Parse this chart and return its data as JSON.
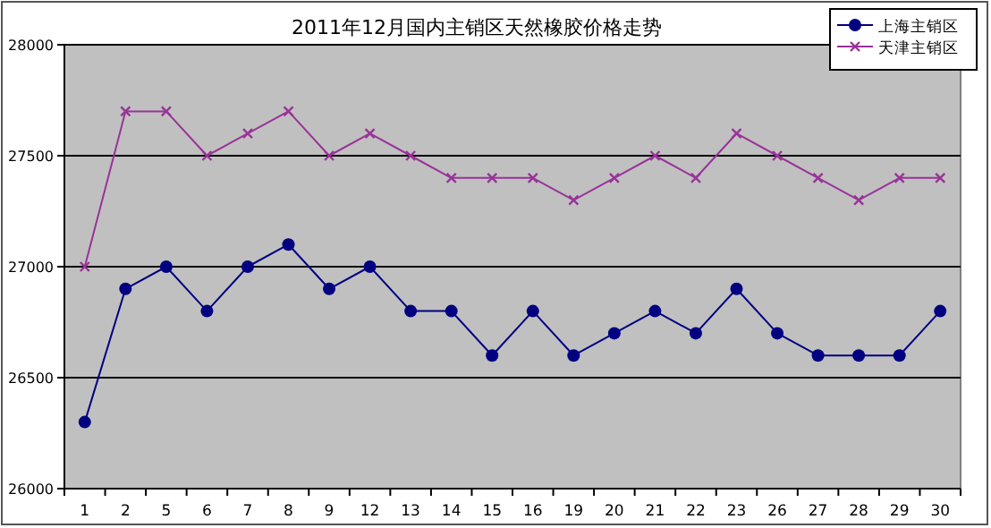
{
  "chart_data": {
    "type": "line",
    "title": "2011年12月国内主销区天然橡胶价格走势",
    "categories": [
      "1",
      "2",
      "5",
      "6",
      "7",
      "8",
      "9",
      "12",
      "13",
      "14",
      "15",
      "16",
      "19",
      "20",
      "21",
      "22",
      "23",
      "26",
      "27",
      "28",
      "29",
      "30"
    ],
    "series": [
      {
        "name": "上海主销区",
        "color": "#000080",
        "marker": "circle",
        "values": [
          26300,
          26900,
          27000,
          26800,
          27000,
          27100,
          26900,
          27000,
          26800,
          26800,
          26600,
          26800,
          26600,
          26700,
          26800,
          26700,
          26900,
          26700,
          26600,
          26600,
          26600,
          26800
        ]
      },
      {
        "name": "天津主销区",
        "color": "#993399",
        "marker": "cross",
        "values": [
          27000,
          27700,
          27700,
          27500,
          27600,
          27700,
          27500,
          27600,
          27500,
          27400,
          27400,
          27400,
          27300,
          27400,
          27500,
          27400,
          27600,
          27500,
          27400,
          27300,
          27400,
          27400
        ]
      }
    ],
    "ylim": [
      26000,
      28000
    ],
    "yticks": [
      26000,
      26500,
      27000,
      27500,
      28000
    ],
    "grid": "y",
    "legend": "top right"
  }
}
